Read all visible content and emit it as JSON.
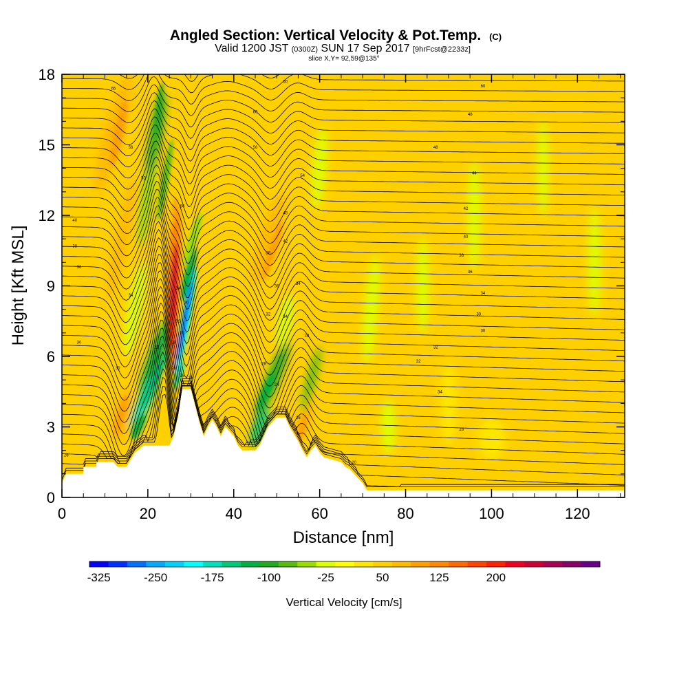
{
  "title": {
    "main": "Angled Section: Vertical Velocity & Pot.Temp.",
    "main_suffix": "(C)",
    "valid_a": "Valid 1200 JST",
    "valid_b": "(0300Z)",
    "valid_c": "SUN 17 Sep 2017",
    "valid_d": "[9hrFcst@2233z]",
    "slice": "slice X,Y= 92,59@135°"
  },
  "colors": {
    "background_field": "#ffd000",
    "terrain": "#ffffff",
    "contour": "#000000"
  },
  "chart_data": {
    "type": "heatmap",
    "xlabel": "Distance [nm]",
    "ylabel": "Height [Kft MSL]",
    "xlim": [
      0,
      131
    ],
    "ylim": [
      0,
      18
    ],
    "x_ticks": [
      0,
      20,
      40,
      60,
      80,
      100,
      120
    ],
    "x_tick_labels": [
      "0",
      "20",
      "40",
      "60",
      "80",
      "100",
      "120"
    ],
    "y_ticks": [
      0,
      3,
      6,
      9,
      12,
      15,
      18
    ],
    "y_tick_labels": [
      "0",
      "3",
      "6",
      "9",
      "12",
      "15",
      "18"
    ],
    "terrain_kft": [
      [
        0,
        0.6
      ],
      [
        1,
        1.0
      ],
      [
        5,
        1.0
      ],
      [
        5,
        1.3
      ],
      [
        8,
        1.3
      ],
      [
        8,
        1.5
      ],
      [
        12,
        1.5
      ],
      [
        13,
        1.3
      ],
      [
        15,
        1.3
      ],
      [
        16,
        1.6
      ],
      [
        17,
        1.9
      ],
      [
        19,
        2.2
      ],
      [
        25,
        2.2
      ],
      [
        26,
        2.6
      ],
      [
        27,
        3.4
      ],
      [
        28,
        4.6
      ],
      [
        30,
        4.6
      ],
      [
        31,
        3.9
      ],
      [
        32,
        3.2
      ],
      [
        33,
        2.6
      ],
      [
        34,
        3.0
      ],
      [
        35,
        3.3
      ],
      [
        36,
        3.0
      ],
      [
        37,
        2.6
      ],
      [
        38,
        3.0
      ],
      [
        39,
        2.8
      ],
      [
        40,
        2.6
      ],
      [
        41,
        2.2
      ],
      [
        42,
        2.0
      ],
      [
        45,
        2.0
      ],
      [
        46,
        2.2
      ],
      [
        47,
        2.6
      ],
      [
        48,
        3.0
      ],
      [
        50,
        3.4
      ],
      [
        52,
        3.4
      ],
      [
        53,
        3.0
      ],
      [
        55,
        2.4
      ],
      [
        56,
        2.0
      ],
      [
        57,
        1.7
      ],
      [
        58,
        2.0
      ],
      [
        59,
        2.2
      ],
      [
        60,
        1.9
      ],
      [
        61,
        1.7
      ],
      [
        63,
        1.6
      ],
      [
        65,
        1.5
      ],
      [
        66,
        1.3
      ],
      [
        67,
        1.2
      ],
      [
        68,
        1.0
      ],
      [
        69,
        0.8
      ],
      [
        70,
        0.6
      ],
      [
        71,
        0.3
      ],
      [
        131,
        0.3
      ]
    ],
    "vertical_velocity_cores": [
      {
        "x": 26.0,
        "y": 8.5,
        "value": 250
      },
      {
        "x": 28.5,
        "y": 7.5,
        "value": -325
      },
      {
        "x": 21.5,
        "y": 5.0,
        "value": -150
      },
      {
        "x": 13.0,
        "y": 15.5,
        "value": 75
      },
      {
        "x": 14.0,
        "y": 3.5,
        "value": 60
      },
      {
        "x": 49.0,
        "y": 10.5,
        "value": 60
      },
      {
        "x": 47.0,
        "y": 4.5,
        "value": -100
      },
      {
        "x": 56.0,
        "y": 3.0,
        "value": 60
      },
      {
        "x": 23.0,
        "y": 14.0,
        "value": -100
      }
    ],
    "contour_labels": [
      {
        "x": 52,
        "y": 17.7,
        "text": "60"
      },
      {
        "x": 98,
        "y": 17.5,
        "text": "60"
      },
      {
        "x": 12,
        "y": 17.4,
        "text": "65"
      },
      {
        "x": 45,
        "y": 16.4,
        "text": "60"
      },
      {
        "x": 95,
        "y": 16.3,
        "text": "48"
      },
      {
        "x": 16,
        "y": 14.9,
        "text": "56"
      },
      {
        "x": 45,
        "y": 14.9,
        "text": "56"
      },
      {
        "x": 87,
        "y": 14.9,
        "text": "48"
      },
      {
        "x": 19,
        "y": 13.6,
        "text": "52"
      },
      {
        "x": 56,
        "y": 13.7,
        "text": "54"
      },
      {
        "x": 96,
        "y": 13.8,
        "text": "44"
      },
      {
        "x": 28,
        "y": 12.4,
        "text": "60"
      },
      {
        "x": 52,
        "y": 12.1,
        "text": "48"
      },
      {
        "x": 94,
        "y": 12.3,
        "text": "42"
      },
      {
        "x": 3,
        "y": 11.8,
        "text": "40"
      },
      {
        "x": 52,
        "y": 10.9,
        "text": "42"
      },
      {
        "x": 94,
        "y": 11.1,
        "text": "40"
      },
      {
        "x": 3,
        "y": 10.7,
        "text": "38"
      },
      {
        "x": 48,
        "y": 10.4,
        "text": "38"
      },
      {
        "x": 93,
        "y": 10.3,
        "text": "36"
      },
      {
        "x": 4,
        "y": 9.8,
        "text": "36"
      },
      {
        "x": 95,
        "y": 9.6,
        "text": "36"
      },
      {
        "x": 50,
        "y": 9.0,
        "text": "36"
      },
      {
        "x": 55,
        "y": 9.1,
        "text": "34"
      },
      {
        "x": 27,
        "y": 8.9,
        "text": "34"
      },
      {
        "x": 16,
        "y": 8.6,
        "text": "34"
      },
      {
        "x": 98,
        "y": 8.7,
        "text": "34"
      },
      {
        "x": 29,
        "y": 8.3,
        "text": "30"
      },
      {
        "x": 48,
        "y": 7.8,
        "text": "32"
      },
      {
        "x": 52,
        "y": 7.7,
        "text": "34"
      },
      {
        "x": 97,
        "y": 7.8,
        "text": "30"
      },
      {
        "x": 27,
        "y": 7.5,
        "text": "30"
      },
      {
        "x": 28,
        "y": 7.0,
        "text": "28"
      },
      {
        "x": 98,
        "y": 7.1,
        "text": "30"
      },
      {
        "x": 57,
        "y": 6.9,
        "text": "28"
      },
      {
        "x": 4,
        "y": 6.6,
        "text": "30"
      },
      {
        "x": 26,
        "y": 6.6,
        "text": "28"
      },
      {
        "x": 22,
        "y": 6.4,
        "text": "28"
      },
      {
        "x": 87,
        "y": 6.4,
        "text": "32"
      },
      {
        "x": 47,
        "y": 5.7,
        "text": "28"
      },
      {
        "x": 83,
        "y": 5.8,
        "text": "32"
      },
      {
        "x": 13,
        "y": 5.5,
        "text": "30"
      },
      {
        "x": 26,
        "y": 5.5,
        "text": "26"
      },
      {
        "x": 30,
        "y": 5.1,
        "text": "26"
      },
      {
        "x": 28,
        "y": 5.2,
        "text": "28"
      },
      {
        "x": 50,
        "y": 4.8,
        "text": "24"
      },
      {
        "x": 88,
        "y": 4.5,
        "text": "34"
      },
      {
        "x": 55,
        "y": 3.4,
        "text": "26"
      },
      {
        "x": 93,
        "y": 2.9,
        "text": "28"
      },
      {
        "x": 1,
        "y": 1.8,
        "text": "26"
      },
      {
        "x": 68,
        "y": 1.5,
        "text": "20"
      }
    ]
  },
  "colorbar": {
    "label": "Vertical Velocity [cm/s]",
    "tick_labels": [
      "-325",
      "-250",
      "-175",
      "-100",
      "-25",
      "50",
      "125",
      "200"
    ],
    "colors": [
      "#0000ff",
      "#0030ff",
      "#0070ff",
      "#00aaff",
      "#00d2ff",
      "#00ffff",
      "#00e0c0",
      "#00c878",
      "#00b040",
      "#22aa22",
      "#55bb11",
      "#99dd00",
      "#ddff00",
      "#ffff00",
      "#ffe600",
      "#ffd000",
      "#ffbb00",
      "#ffa000",
      "#ff8800",
      "#ff6a00",
      "#ff4400",
      "#ff2200",
      "#ee0022",
      "#cc0033",
      "#aa0055",
      "#880066",
      "#660088"
    ]
  }
}
